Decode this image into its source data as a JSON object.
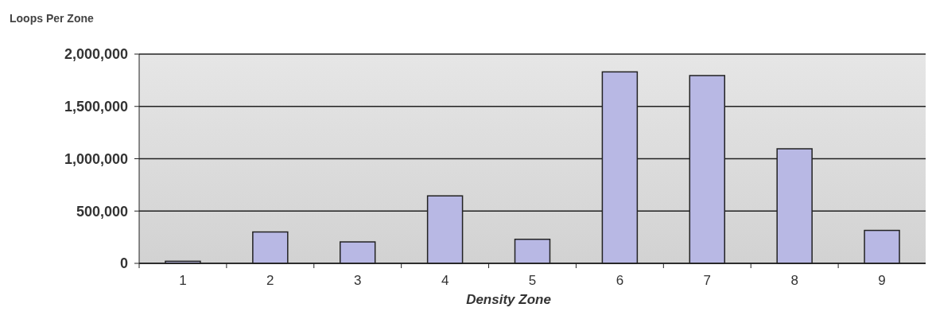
{
  "chart_data": {
    "type": "bar",
    "title": "Loops Per Zone",
    "xlabel": "Density Zone",
    "categories": [
      "1",
      "2",
      "3",
      "4",
      "5",
      "6",
      "7",
      "8",
      "9"
    ],
    "values": [
      20000,
      300000,
      205000,
      645000,
      230000,
      1830000,
      1795000,
      1095000,
      315000
    ],
    "color": "#b8b8e4",
    "ylim": [
      0,
      2000000
    ],
    "yticks": [
      {
        "value": 0,
        "label": "0"
      },
      {
        "value": 500000,
        "label": "500,000"
      },
      {
        "value": 1000000,
        "label": "1,000,000"
      },
      {
        "value": 1500000,
        "label": "1,500,000"
      },
      {
        "value": 2000000,
        "label": "2,000,000"
      }
    ],
    "grid": "y"
  }
}
